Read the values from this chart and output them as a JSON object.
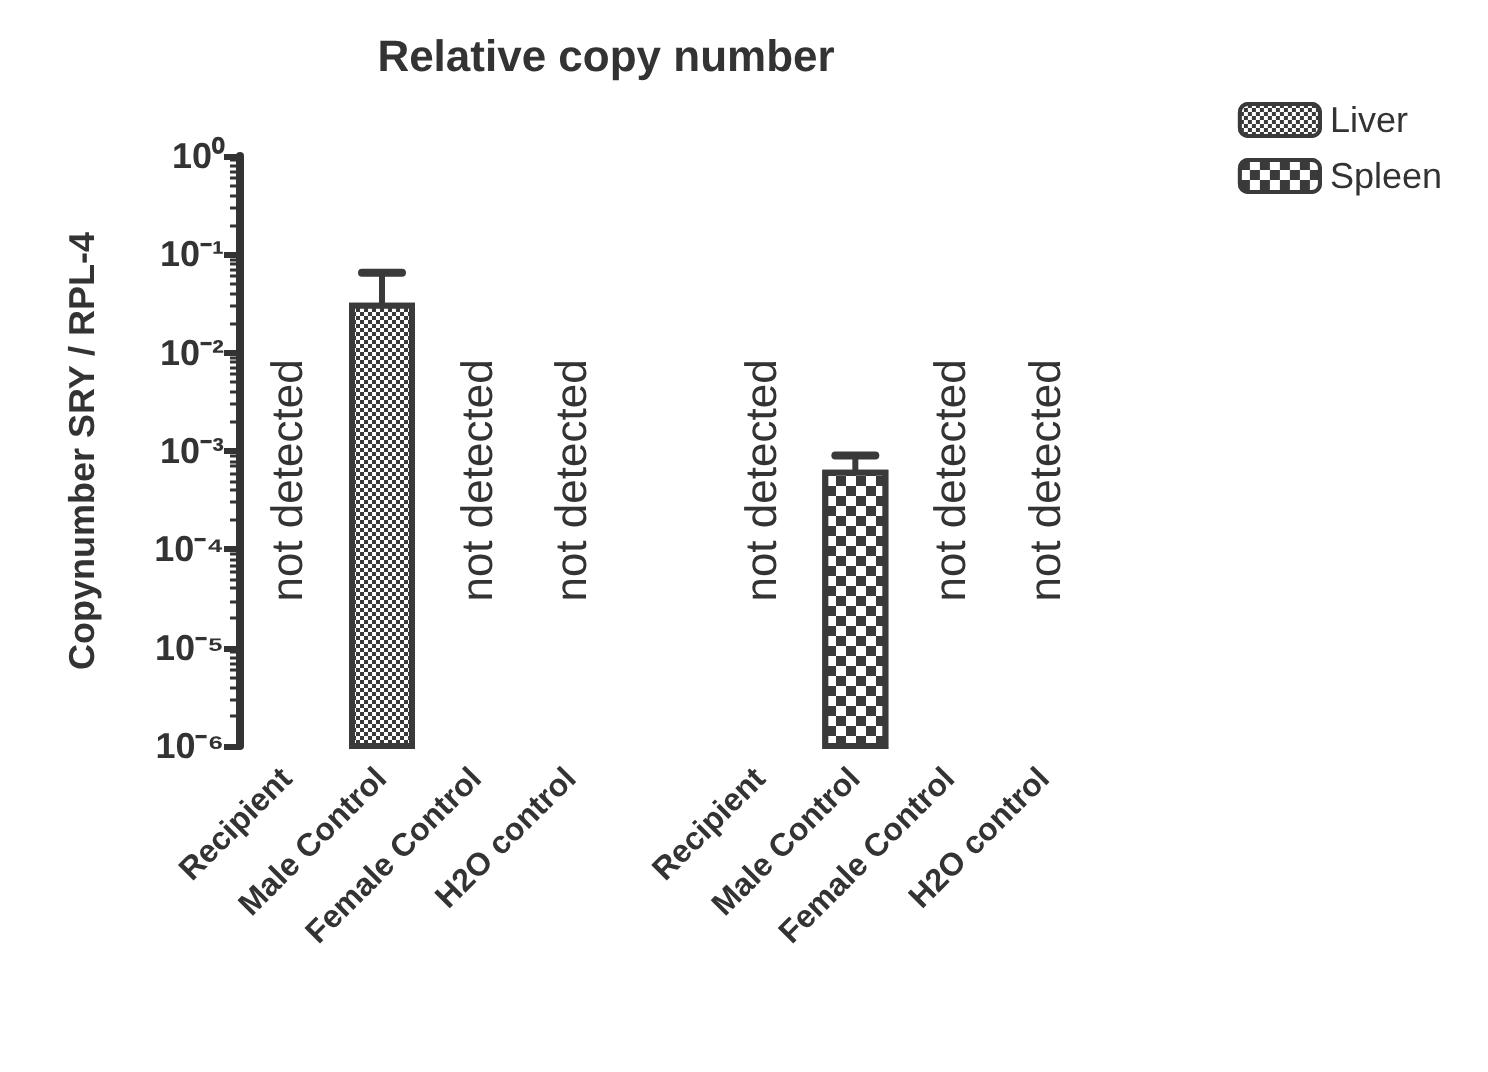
{
  "chart_data": {
    "type": "bar",
    "title": "Relative copy number",
    "ylabel": "Copynumber SRY / RPL-4",
    "categories": [
      "Recipient",
      "Male Control",
      "Female Control",
      "H2O control",
      null,
      "Recipient",
      "Male Control",
      "Female Control",
      "H2O control"
    ],
    "series": [
      {
        "name": "Liver",
        "color": "#3a3a3a",
        "values": [
          null,
          0.03,
          null,
          null,
          null,
          null,
          null,
          null,
          null
        ],
        "errors": [
          null,
          [
            0.03,
            0.065
          ],
          null,
          null,
          null,
          null,
          null,
          null,
          null
        ],
        "value_labels": [
          "not detected",
          null,
          "not detected",
          "not detected",
          null,
          null,
          null,
          null,
          null
        ]
      },
      {
        "name": "Spleen",
        "color": "#3a3a3a",
        "values": [
          null,
          null,
          null,
          null,
          null,
          null,
          0.0006,
          null,
          null
        ],
        "errors": [
          null,
          null,
          null,
          null,
          null,
          null,
          [
            0.0006,
            0.0009
          ],
          null,
          null
        ],
        "value_labels": [
          null,
          null,
          null,
          null,
          null,
          "not detected",
          null,
          "not detected",
          "not detected"
        ]
      }
    ],
    "log": "y",
    "ylim": [
      1e-06,
      1
    ],
    "yticks": [
      {
        "value": 1e-06,
        "label": "10⁻⁶"
      },
      {
        "value": 1e-05,
        "label": "10⁻⁵"
      },
      {
        "value": 0.0001,
        "label": "10⁻⁴"
      },
      {
        "value": 0.001,
        "label": "10⁻³"
      },
      {
        "value": 0.01,
        "label": "10⁻²"
      },
      {
        "value": 0.1,
        "label": "10⁻¹"
      },
      {
        "value": 1,
        "label": "10⁰"
      }
    ],
    "grid": false,
    "legend": "top right"
  }
}
